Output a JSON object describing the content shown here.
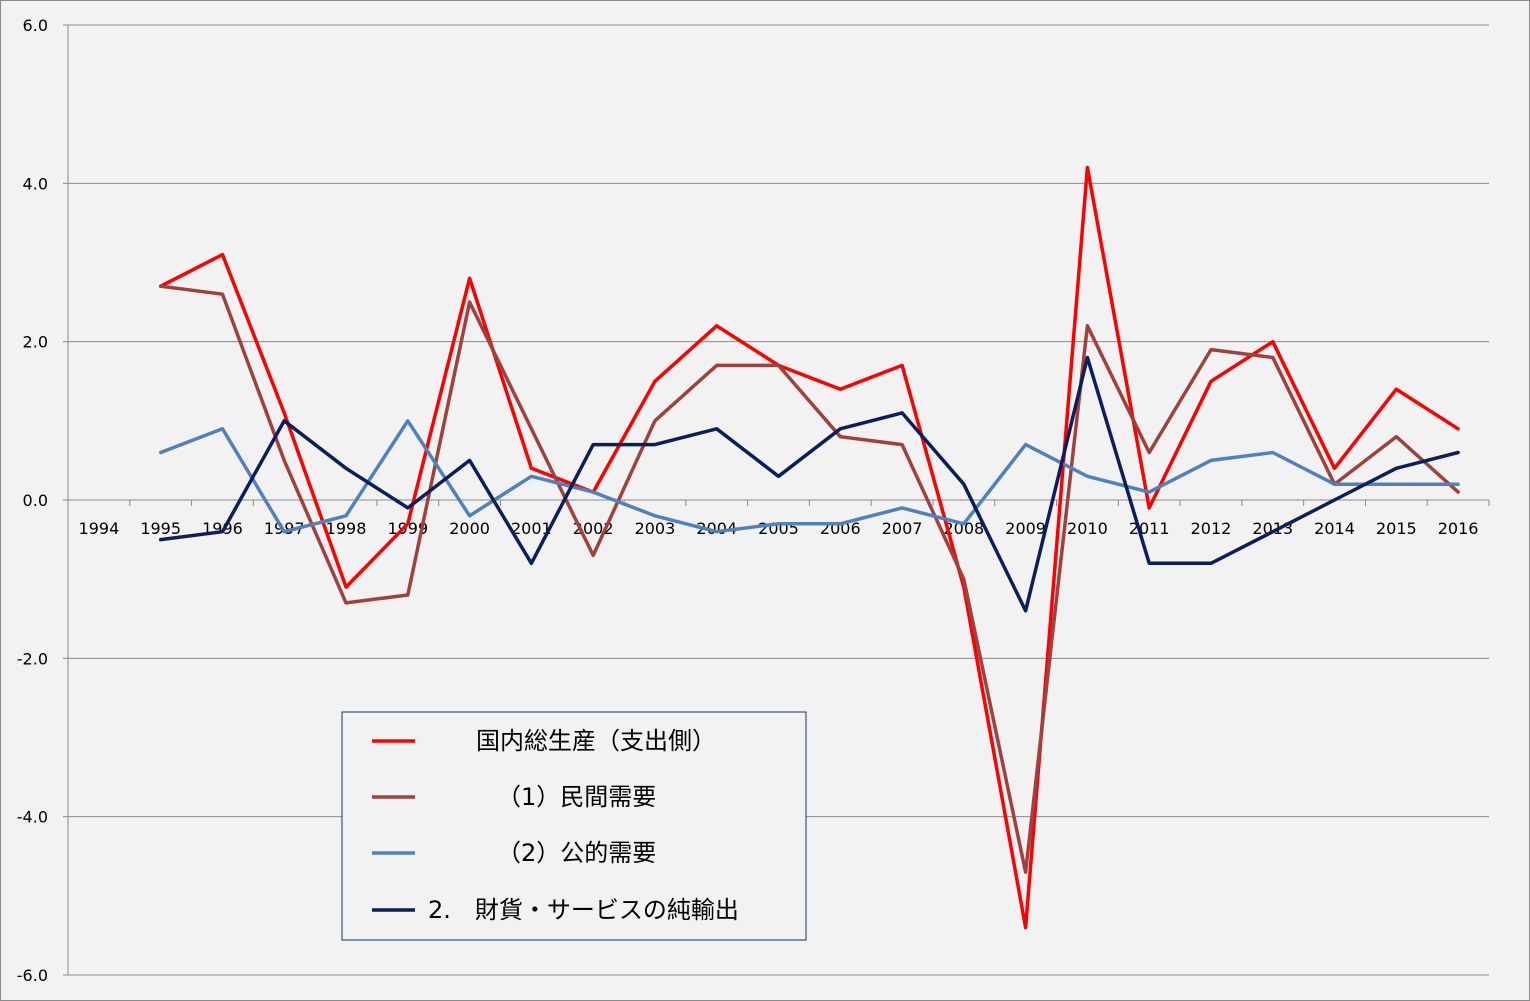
{
  "chart_data": {
    "type": "line",
    "categories": [
      "1994",
      "1995",
      "1996",
      "1997",
      "1998",
      "1999",
      "2000",
      "2001",
      "2002",
      "2003",
      "2004",
      "2005",
      "2006",
      "2007",
      "2008",
      "2009",
      "2010",
      "2011",
      "2012",
      "2013",
      "2014",
      "2015",
      "2016"
    ],
    "yticks": [
      "6.0",
      "4.0",
      "2.0",
      "0.0",
      "-2.0",
      "-4.0",
      "-6.0"
    ],
    "ylim": [
      -6,
      6
    ],
    "grid": true,
    "legend_position": "bottom-left inside plot",
    "series": [
      {
        "name": "国内総生産（支出側）",
        "color": "#ff0000",
        "values": [
          null,
          2.7,
          3.1,
          1.1,
          -1.1,
          -0.3,
          2.8,
          0.4,
          0.1,
          1.5,
          2.2,
          1.7,
          1.4,
          1.7,
          -1.1,
          -5.4,
          4.2,
          -0.1,
          1.5,
          2.0,
          0.4,
          1.4,
          0.9
        ]
      },
      {
        "name": "（1）民間需要",
        "color": "#a0413d",
        "values": [
          null,
          2.7,
          2.6,
          0.5,
          -1.3,
          -1.2,
          2.5,
          0.9,
          -0.7,
          1.0,
          1.7,
          1.7,
          0.8,
          0.7,
          -1.0,
          -4.7,
          2.2,
          0.6,
          1.9,
          1.8,
          0.2,
          0.8,
          0.1
        ]
      },
      {
        "name": "（2）公的需要",
        "color": "#4f81bd",
        "values": [
          null,
          0.6,
          0.9,
          -0.4,
          -0.2,
          1.0,
          -0.2,
          0.3,
          0.1,
          -0.2,
          -0.4,
          -0.3,
          -0.3,
          -0.1,
          -0.3,
          0.7,
          0.3,
          0.1,
          0.5,
          0.6,
          0.2,
          0.2,
          0.2
        ]
      },
      {
        "name": "2.　財貨・サービスの純輸出",
        "color": "#0a1f5c",
        "values": [
          null,
          -0.5,
          -0.4,
          1.0,
          0.4,
          -0.1,
          0.5,
          -0.8,
          0.7,
          0.7,
          0.9,
          0.3,
          0.9,
          1.1,
          0.2,
          -1.4,
          1.8,
          -0.8,
          -0.8,
          -0.4,
          0.0,
          0.4,
          0.6
        ]
      }
    ]
  }
}
